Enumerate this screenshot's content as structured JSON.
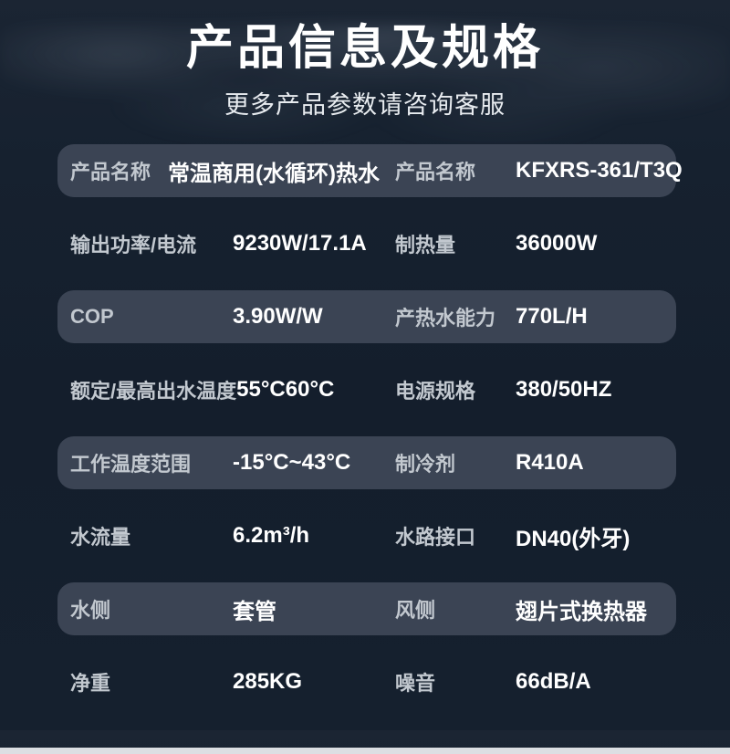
{
  "page": {
    "title": "产品信息及规格",
    "subtitle": "更多产品参数请咨询客服"
  },
  "theme": {
    "background": "#15202e",
    "row_highlight": "#3b4454",
    "label_color": "#c2c8cf",
    "value_color": "#ffffff",
    "bottom_strip": "#dcdfe3"
  },
  "spec_table": {
    "rows": [
      {
        "label1": "产品名称",
        "value1": "常温商用(水循环)热水",
        "label2": "产品名称",
        "value2": "KFXRS-361/T3Q",
        "highlighted": true
      },
      {
        "label1": "输出功率/电流",
        "value1": "9230W/17.1A",
        "label2": "制热量",
        "value2": "36000W",
        "highlighted": false
      },
      {
        "label1": "COP",
        "value1": "3.90W/W",
        "label2": "产热水能力",
        "value2": "770L/H",
        "highlighted": true
      },
      {
        "label1": "额定/最高出水温度",
        "value1": "55°C60°C",
        "label2": "电源规格",
        "value2": "380/50HZ",
        "highlighted": false
      },
      {
        "label1": "工作温度范围",
        "value1": "-15°C~43°C",
        "label2": "制冷剂",
        "value2": "R410A",
        "highlighted": true
      },
      {
        "label1": "水流量",
        "value1": "6.2m³/h",
        "label2": "水路接口",
        "value2": "DN40(外牙)",
        "highlighted": false
      },
      {
        "label1": "水侧",
        "value1": "套管",
        "label2": "风侧",
        "value2": "翅片式换热器",
        "highlighted": true
      },
      {
        "label1": "净重",
        "value1": "285KG",
        "label2": "噪音",
        "value2": "66dB/A",
        "highlighted": false
      }
    ]
  }
}
